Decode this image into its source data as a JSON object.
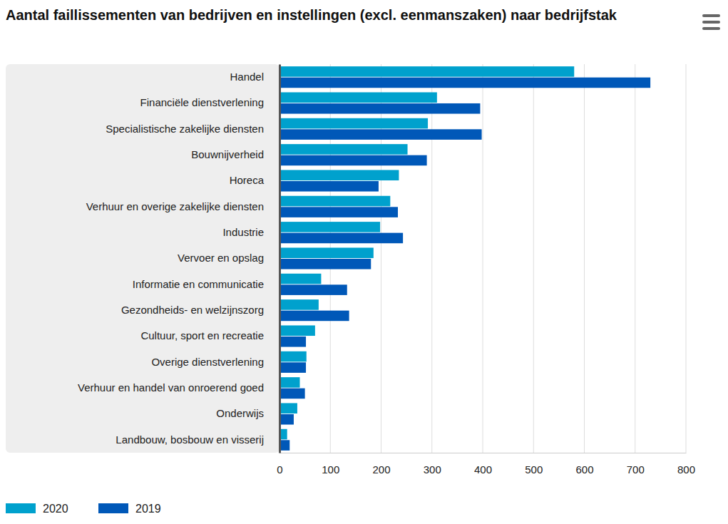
{
  "chart_data": {
    "type": "bar",
    "orientation": "horizontal",
    "title": "Aantal faillissementen van bedrijven en instellingen (excl. eenmanszaken) naar bedrijfstak",
    "categories": [
      "Handel",
      "Financiële dienstverlening",
      "Specialistische zakelijke diensten",
      "Bouwnijverheid",
      "Horeca",
      "Verhuur en overige zakelijke diensten",
      "Industrie",
      "Vervoer en opslag",
      "Informatie en communicatie",
      "Gezondheids- en welzijnszorg",
      "Cultuur, sport en recreatie",
      "Overige dienstverlening",
      "Verhuur en handel van onroerend goed",
      "Onderwijs",
      "Landbouw, bosbouw en visserij"
    ],
    "series": [
      {
        "name": "2020",
        "color": "#00a1cd",
        "values": [
          580,
          310,
          292,
          252,
          235,
          218,
          198,
          185,
          82,
          77,
          70,
          53,
          40,
          35,
          15
        ]
      },
      {
        "name": "2019",
        "color": "#0058b8",
        "values": [
          730,
          395,
          398,
          290,
          195,
          233,
          243,
          180,
          133,
          137,
          52,
          52,
          50,
          28,
          20
        ]
      }
    ],
    "xlim": [
      0,
      800
    ],
    "xticks": [
      0,
      100,
      200,
      300,
      400,
      500,
      600,
      700,
      800
    ],
    "grid": true,
    "legend": "bottom-left"
  }
}
